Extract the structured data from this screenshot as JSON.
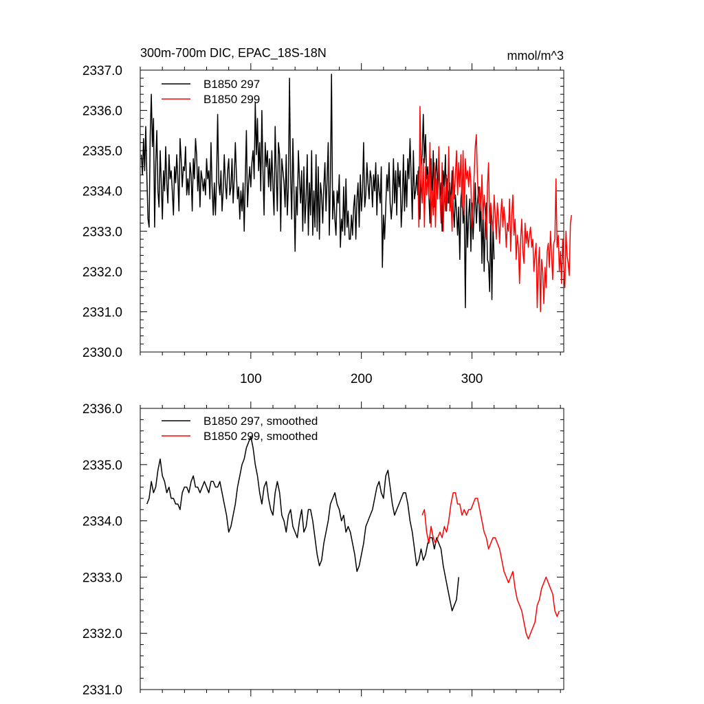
{
  "chart_data": [
    {
      "type": "line",
      "title": "300m-700m DIC, EPAC_18S-18N",
      "units": "mmol/m^3",
      "xlim": [
        0,
        383
      ],
      "ylim": [
        2330.0,
        2337.0
      ],
      "x_ticks": [
        100,
        200,
        300
      ],
      "x_tick_labels": [
        "100",
        "200",
        "300"
      ],
      "y_ticks": [
        2330.0,
        2331.0,
        2332.0,
        2333.0,
        2334.0,
        2335.0,
        2336.0,
        2337.0
      ],
      "y_tick_labels": [
        "2330.0",
        "2331.0",
        "2332.0",
        "2333.0",
        "2334.0",
        "2335.0",
        "2336.0",
        "2337.0"
      ],
      "legend_position": "top-left",
      "series": [
        {
          "name": "B1850 297",
          "color": "#000000",
          "x_start": 1,
          "values": [
            2334.9,
            2334.4,
            2335.3,
            2334.5,
            2335.6,
            2334.3,
            2333.3,
            2333.1,
            2335.4,
            2336.4,
            2335.1,
            2335.8,
            2333.1,
            2334.7,
            2335.5,
            2334.0,
            2333.6,
            2335.0,
            2334.2,
            2333.3,
            2334.5,
            2334.0,
            2335.1,
            2334.2,
            2333.7,
            2334.9,
            2334.3,
            2334.5,
            2334.0,
            2333.4,
            2334.6,
            2334.2,
            2334.9,
            2334.3,
            2333.5,
            2335.3,
            2334.8,
            2334.1,
            2334.6,
            2334.5,
            2335.1,
            2333.9,
            2334.3,
            2333.9,
            2334.7,
            2334.4,
            2333.5,
            2334.8,
            2334.3,
            2335.3,
            2334.9,
            2334.0,
            2334.6,
            2333.6,
            2334.5,
            2334.3,
            2334.0,
            2334.3,
            2333.9,
            2334.8,
            2334.3,
            2334.5,
            2333.8,
            2335.2,
            2334.1,
            2333.4,
            2334.2,
            2333.4,
            2334.3,
            2335.9,
            2334.2,
            2333.9,
            2334.5,
            2333.5,
            2334.0,
            2334.9,
            2334.2,
            2333.8,
            2334.5,
            2334.8,
            2333.9,
            2334.1,
            2334.8,
            2333.7,
            2334.3,
            2335.2,
            2334.4,
            2333.8,
            2334.1,
            2333.3,
            2334.0,
            2333.5,
            2334.2,
            2333.0,
            2334.3,
            2335.5,
            2333.6,
            2334.2,
            2334.6,
            2334.1,
            2334.7,
            2335.0,
            2334.3,
            2336.2,
            2334.9,
            2335.8,
            2334.5,
            2335.2,
            2334.0,
            2336.0,
            2334.5,
            2333.4,
            2335.2,
            2334.6,
            2335.0,
            2334.1,
            2334.8,
            2334.0,
            2335.0,
            2334.1,
            2333.4,
            2335.6,
            2334.4,
            2333.5,
            2335.2,
            2334.9,
            2333.0,
            2334.8,
            2334.5,
            2334.2,
            2333.6,
            2334.9,
            2333.4,
            2334.1,
            2336.8,
            2334.4,
            2333.3,
            2335.3,
            2334.0,
            2332.5,
            2334.1,
            2333.4,
            2335.0,
            2334.3,
            2333.7,
            2334.5,
            2333.0,
            2334.6,
            2333.2,
            2333.8,
            2334.9,
            2332.9,
            2334.2,
            2333.4,
            2335.0,
            2332.9,
            2334.0,
            2333.1,
            2334.9,
            2333.0,
            2334.6,
            2332.8,
            2334.2,
            2333.9,
            2333.2,
            2334.1,
            2334.7,
            2333.5,
            2334.3,
            2335.2,
            2332.9,
            2334.3,
            2336.9,
            2333.3,
            2334.0,
            2333.3,
            2332.9,
            2334.0,
            2333.7,
            2334.4,
            2332.6,
            2333.3,
            2333.0,
            2334.1,
            2332.9,
            2334.3,
            2333.1,
            2333.5,
            2332.8,
            2332.8,
            2333.4,
            2332.9,
            2333.6,
            2333.9,
            2332.8,
            2333.8,
            2334.2,
            2333.1,
            2334.4,
            2333.5,
            2334.0,
            2335.2,
            2333.6,
            2333.9,
            2334.7,
            2334.2,
            2333.8,
            2334.5,
            2334.3,
            2333.6,
            2334.4,
            2334.0,
            2334.7,
            2333.4,
            2334.4,
            2334.0,
            2333.7,
            2334.6,
            2332.1,
            2333.4,
            2332.8,
            2333.6,
            2334.4,
            2334.0,
            2334.7,
            2333.7,
            2333.3,
            2333.7,
            2334.8,
            2333.7,
            2334.5,
            2333.4,
            2334.7,
            2334.1,
            2334.5,
            2333.1,
            2333.7,
            2334.9,
            2333.5,
            2334.5,
            2333.6,
            2334.8,
            2334.3,
            2335.3,
            2334.4,
            2333.3,
            2335.0,
            2333.8,
            2334.0,
            2334.4,
            2333.9,
            2334.6,
            2333.3,
            2334.6,
            2334.9,
            2335.9,
            2334.7,
            2335.4,
            2334.3,
            2334.6,
            2333.9,
            2333.2,
            2334.8,
            2333.7,
            2335.0,
            2333.6,
            2334.4,
            2334.8,
            2334.0,
            2334.6,
            2333.8,
            2334.2,
            2333.0,
            2334.5,
            2334.1,
            2334.9,
            2333.5,
            2334.3,
            2333.7,
            2334.2,
            2333.6,
            2334.5,
            2333.6,
            2333.1,
            2333.9,
            2333.5,
            2332.9,
            2333.6,
            2332.3,
            2333.8,
            2334.1,
            2333.2,
            2333.6,
            2331.1,
            2333.9,
            2332.6,
            2333.4,
            2333.8,
            2332.5,
            2333.7,
            2332.8,
            2333.5,
            2334.2,
            2333.2,
            2333.7,
            2334.1,
            2333.0,
            2333.8,
            2332.2,
            2333.5,
            2332.0,
            2333.2,
            2333.7,
            2332.3,
            2332.2,
            2331.5,
            2333.5,
            2331.3,
            2333.2,
            2332.3
          ]
        },
        {
          "name": "B1850 299",
          "color": "#ff0000",
          "x_start": 251,
          "values": [
            2334.5,
            2333.1,
            2336.1,
            2334.3,
            2333.7,
            2334.8,
            2333.1,
            2334.6,
            2333.9,
            2334.4,
            2333.8,
            2335.2,
            2333.1,
            2334.0,
            2333.4,
            2334.7,
            2333.1,
            2334.3,
            2333.8,
            2335.1,
            2333.9,
            2333.2,
            2334.7,
            2333.0,
            2334.1,
            2333.5,
            2334.4,
            2333.7,
            2335.1,
            2333.5,
            2333.9,
            2333.0,
            2334.6,
            2333.8,
            2334.4,
            2335.0,
            2333.9,
            2334.7,
            2334.1,
            2334.9,
            2333.6,
            2335.0,
            2333.4,
            2334.8,
            2334.3,
            2334.5,
            2334.1,
            2334.6,
            2334.2,
            2333.1,
            2333.7,
            2334.4,
            2335.1,
            2335.4,
            2334.3,
            2333.7,
            2334.1,
            2333.5,
            2334.4,
            2333.3,
            2333.9,
            2333.5,
            2332.8,
            2334.1,
            2334.7,
            2333.2,
            2333.7,
            2333.3,
            2333.0,
            2333.9,
            2333.4,
            2332.8,
            2333.7,
            2333.3,
            2332.7,
            2333.4,
            2333.8,
            2333.1,
            2333.6,
            2333.2,
            2332.6,
            2333.2,
            2333.0,
            2333.8,
            2332.5,
            2333.4,
            2333.9,
            2332.9,
            2333.3,
            2332.3,
            2332.9,
            2332.6,
            2331.7,
            2332.8,
            2333.3,
            2332.5,
            2332.2,
            2333.2,
            2332.7,
            2333.0,
            2332.6,
            2332.9,
            2333.1,
            2332.6,
            2332.8,
            2332.0,
            2332.4,
            2332.7,
            2331.1,
            2332.1,
            2332.6,
            2331.0,
            2332.3,
            2332.0,
            2331.2,
            2332.1,
            2331.6,
            2332.5,
            2332.7,
            2332.1,
            2333.0,
            2332.4,
            2331.8,
            2332.7,
            2332.8,
            2334.3,
            2332.6,
            2332.9,
            2332.0,
            2332.5,
            2331.7,
            2332.8,
            2332.1,
            2331.6,
            2333.0,
            2332.4,
            2332.2,
            2331.9,
            2333.2,
            2333.4
          ]
        }
      ]
    },
    {
      "type": "line",
      "title": "",
      "xlim": [
        0,
        383
      ],
      "ylim": [
        2331.0,
        2336.0
      ],
      "y_ticks": [
        2331.0,
        2332.0,
        2333.0,
        2334.0,
        2335.0,
        2336.0
      ],
      "y_tick_labels": [
        "2331.0",
        "2332.0",
        "2333.0",
        "2334.0",
        "2335.0",
        "2336.0"
      ],
      "legend_position": "top-left",
      "series": [
        {
          "name": "B1850 297, smoothed",
          "color": "#000000",
          "x_start": 6,
          "step": 2,
          "values": [
            2334.3,
            2334.4,
            2334.7,
            2334.5,
            2334.6,
            2334.9,
            2335.1,
            2334.8,
            2334.7,
            2334.5,
            2334.6,
            2334.4,
            2334.4,
            2334.3,
            2334.3,
            2334.2,
            2334.5,
            2334.6,
            2334.6,
            2334.5,
            2334.7,
            2334.8,
            2334.6,
            2334.6,
            2334.5,
            2334.6,
            2334.7,
            2334.6,
            2334.5,
            2334.7,
            2334.7,
            2334.6,
            2334.6,
            2334.7,
            2334.5,
            2334.3,
            2334.1,
            2333.8,
            2333.9,
            2334.1,
            2334.3,
            2334.6,
            2334.8,
            2335.0,
            2335.1,
            2335.3,
            2335.4,
            2335.5,
            2335.3,
            2335.0,
            2334.8,
            2334.5,
            2334.3,
            2334.6,
            2334.7,
            2334.4,
            2334.2,
            2334.1,
            2334.5,
            2334.7,
            2334.5,
            2334.1,
            2334.0,
            2333.8,
            2334.1,
            2334.2,
            2333.9,
            2333.8,
            2333.7,
            2334.0,
            2334.2,
            2333.8,
            2333.9,
            2334.2,
            2334.2,
            2334.0,
            2333.7,
            2333.4,
            2333.2,
            2333.3,
            2333.6,
            2333.8,
            2334.0,
            2334.3,
            2334.4,
            2334.5,
            2334.3,
            2334.2,
            2334.0,
            2334.1,
            2333.8,
            2333.9,
            2333.8,
            2333.6,
            2333.4,
            2333.1,
            2333.2,
            2333.4,
            2333.6,
            2333.9,
            2334.0,
            2334.1,
            2334.2,
            2334.4,
            2334.6,
            2334.7,
            2334.5,
            2334.4,
            2334.8,
            2334.9,
            2334.6,
            2334.3,
            2334.1,
            2334.2,
            2334.3,
            2334.4,
            2334.5,
            2334.5,
            2334.3,
            2334.0,
            2333.8,
            2333.5,
            2333.2,
            2333.3,
            2333.5,
            2333.3,
            2333.4,
            2333.6,
            2333.7,
            2333.7,
            2333.5,
            2333.7,
            2333.6,
            2333.5,
            2333.2,
            2333.0,
            2332.8,
            2332.6,
            2332.4,
            2332.5,
            2332.6,
            2333.0
          ]
        },
        {
          "name": "B1850 299, smoothed",
          "color": "#ff0000",
          "x_start": 255,
          "step": 2,
          "values": [
            2334.1,
            2334.2,
            2333.8,
            2333.6,
            2333.9,
            2333.7,
            2333.6,
            2333.7,
            2333.8,
            2333.7,
            2333.9,
            2333.8,
            2334.0,
            2334.3,
            2334.5,
            2334.5,
            2334.3,
            2334.3,
            2334.1,
            2334.2,
            2334.1,
            2334.2,
            2334.2,
            2334.3,
            2334.4,
            2334.4,
            2334.2,
            2334.0,
            2333.8,
            2333.7,
            2333.5,
            2333.6,
            2333.7,
            2333.7,
            2333.6,
            2333.5,
            2333.3,
            2333.1,
            2333.0,
            2332.9,
            2333.0,
            2333.1,
            2332.8,
            2332.6,
            2332.5,
            2332.4,
            2332.2,
            2332.0,
            2331.9,
            2332.0,
            2332.1,
            2332.2,
            2332.5,
            2332.6,
            2332.8,
            2332.9,
            2333.0,
            2332.9,
            2332.8,
            2332.7,
            2332.4,
            2332.3,
            2332.4
          ]
        }
      ]
    }
  ]
}
